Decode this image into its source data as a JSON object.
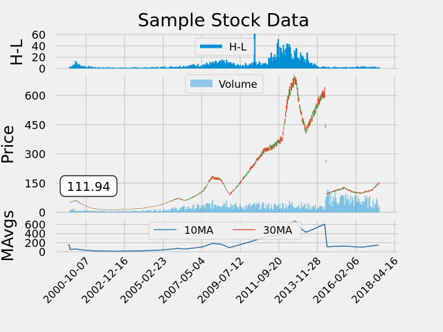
{
  "chart_data": {
    "type": "line",
    "title": "Sample Stock Data",
    "xticks": [
      "2000-10-07",
      "2002-12-16",
      "2005-02-23",
      "2007-05-04",
      "2009-07-12",
      "2011-09-20",
      "2013-11-28",
      "2016-02-06",
      "2018-04-16"
    ],
    "last_price_label": "111.94",
    "colors": {
      "hl": "#008fd5",
      "volume": "#008fd5",
      "up": "#53a653",
      "down": "#e04020",
      "ma10": "#1f77b4",
      "ma30": "#e5482d",
      "grid": "#cbcbcb",
      "bg": "#f0f0f0"
    },
    "panels": {
      "hl": {
        "ylabel": "H-L",
        "ylim": [
          0,
          60
        ],
        "yticks": [
          "0",
          "20",
          "40",
          "60"
        ],
        "legend": "H-L",
        "legend_position": "upper-center",
        "series_points": [
          [
            "1999-11-01",
            3
          ],
          [
            "2000-03-15",
            12
          ],
          [
            "2000-06-01",
            6
          ],
          [
            "2000-10-01",
            4
          ],
          [
            "2001-06-01",
            2
          ],
          [
            "2003-01-01",
            1.5
          ],
          [
            "2004-06-01",
            2
          ],
          [
            "2005-06-01",
            3
          ],
          [
            "2006-06-01",
            5
          ],
          [
            "2007-06-01",
            8
          ],
          [
            "2008-09-01",
            13
          ],
          [
            "2009-06-01",
            6
          ],
          [
            "2010-06-01",
            10
          ],
          [
            "2011-01-01",
            12
          ],
          [
            "2011-06-01",
            28
          ],
          [
            "2011-09-01",
            45
          ],
          [
            "2012-04-01",
            35
          ],
          [
            "2012-09-01",
            30
          ],
          [
            "2013-01-01",
            22
          ],
          [
            "2013-06-01",
            14
          ],
          [
            "2014-01-01",
            3
          ],
          [
            "2015-01-01",
            2.5
          ],
          [
            "2016-01-01",
            3
          ],
          [
            "2017-01-01",
            3
          ]
        ],
        "spikes": [
          [
            "2010-05-06",
            62
          ],
          [
            "2012-04-10",
            38
          ],
          [
            "2012-09-20",
            33
          ],
          [
            "2013-05-01",
            28
          ],
          [
            "2011-11-01",
            36
          ]
        ]
      },
      "price": {
        "ylabel": "Price",
        "ylim": [
          0,
          700
        ],
        "yticks": [
          "0",
          "150",
          "300",
          "450",
          "600"
        ],
        "volume_legend": "Volume",
        "legend_position": "upper-center",
        "series_points": [
          [
            "1999-11-01",
            50
          ],
          [
            "2000-03-15",
            62
          ],
          [
            "2000-06-01",
            48
          ],
          [
            "2000-10-01",
            32
          ],
          [
            "2001-03-01",
            20
          ],
          [
            "2001-09-01",
            14
          ],
          [
            "2002-06-01",
            13
          ],
          [
            "2003-01-01",
            15
          ],
          [
            "2003-12-01",
            20
          ],
          [
            "2004-06-01",
            28
          ],
          [
            "2005-01-01",
            38
          ],
          [
            "2005-06-01",
            52
          ],
          [
            "2006-01-01",
            72
          ],
          [
            "2006-06-01",
            60
          ],
          [
            "2007-01-01",
            85
          ],
          [
            "2007-06-01",
            110
          ],
          [
            "2007-12-01",
            180
          ],
          [
            "2008-06-01",
            170
          ],
          [
            "2008-12-01",
            90
          ],
          [
            "2009-06-01",
            140
          ],
          [
            "2009-12-01",
            200
          ],
          [
            "2010-06-01",
            260
          ],
          [
            "2010-12-01",
            320
          ],
          [
            "2011-06-01",
            340
          ],
          [
            "2011-12-01",
            380
          ],
          [
            "2012-04-01",
            600
          ],
          [
            "2012-09-01",
            690
          ],
          [
            "2012-12-01",
            530
          ],
          [
            "2013-04-01",
            420
          ],
          [
            "2013-08-01",
            480
          ],
          [
            "2013-12-01",
            560
          ],
          [
            "2014-05-01",
            620
          ],
          [
            "2014-06-09",
            95
          ],
          [
            "2014-12-01",
            110
          ],
          [
            "2015-06-01",
            125
          ],
          [
            "2015-12-01",
            105
          ],
          [
            "2016-06-01",
            98
          ],
          [
            "2017-01-01",
            115
          ],
          [
            "2017-06-01",
            150
          ]
        ],
        "volume_points": [
          [
            "1999-11-01",
            20
          ],
          [
            "2000-10-01",
            10
          ],
          [
            "2003-01-01",
            6
          ],
          [
            "2005-01-01",
            15
          ],
          [
            "2006-06-01",
            30
          ],
          [
            "2007-06-01",
            40
          ],
          [
            "2008-09-01",
            70
          ],
          [
            "2009-06-01",
            35
          ],
          [
            "2010-06-01",
            45
          ],
          [
            "2011-06-01",
            40
          ],
          [
            "2012-06-01",
            55
          ],
          [
            "2013-06-01",
            40
          ],
          [
            "2014-05-01",
            30
          ],
          [
            "2014-06-10",
            100
          ],
          [
            "2015-06-01",
            90
          ],
          [
            "2016-06-01",
            80
          ],
          [
            "2017-06-01",
            60
          ]
        ]
      },
      "mavg": {
        "ylabel": "MAvgs",
        "ylim": [
          0,
          700
        ],
        "yticks": [
          "0",
          "200",
          "400",
          "600"
        ],
        "legend": [
          "10MA",
          "30MA"
        ],
        "legend_position": "upper-center",
        "series_points": [
          [
            "1999-11-01",
            50
          ],
          [
            "2000-03-15",
            62
          ],
          [
            "2000-06-01",
            48
          ],
          [
            "2000-10-01",
            32
          ],
          [
            "2001-03-01",
            20
          ],
          [
            "2002-06-01",
            13
          ],
          [
            "2003-12-01",
            20
          ],
          [
            "2005-01-01",
            38
          ],
          [
            "2006-01-01",
            72
          ],
          [
            "2006-06-01",
            60
          ],
          [
            "2007-06-01",
            110
          ],
          [
            "2007-12-01",
            180
          ],
          [
            "2008-06-01",
            170
          ],
          [
            "2008-12-01",
            90
          ],
          [
            "2009-12-01",
            200
          ],
          [
            "2010-12-01",
            320
          ],
          [
            "2011-12-01",
            380
          ],
          [
            "2012-04-01",
            600
          ],
          [
            "2012-09-01",
            680
          ],
          [
            "2012-12-01",
            530
          ],
          [
            "2013-04-01",
            430
          ],
          [
            "2013-08-01",
            480
          ],
          [
            "2014-05-01",
            610
          ],
          [
            "2014-06-15",
            110
          ],
          [
            "2015-06-01",
            125
          ],
          [
            "2016-06-01",
            100
          ],
          [
            "2017-06-01",
            150
          ]
        ]
      }
    }
  }
}
